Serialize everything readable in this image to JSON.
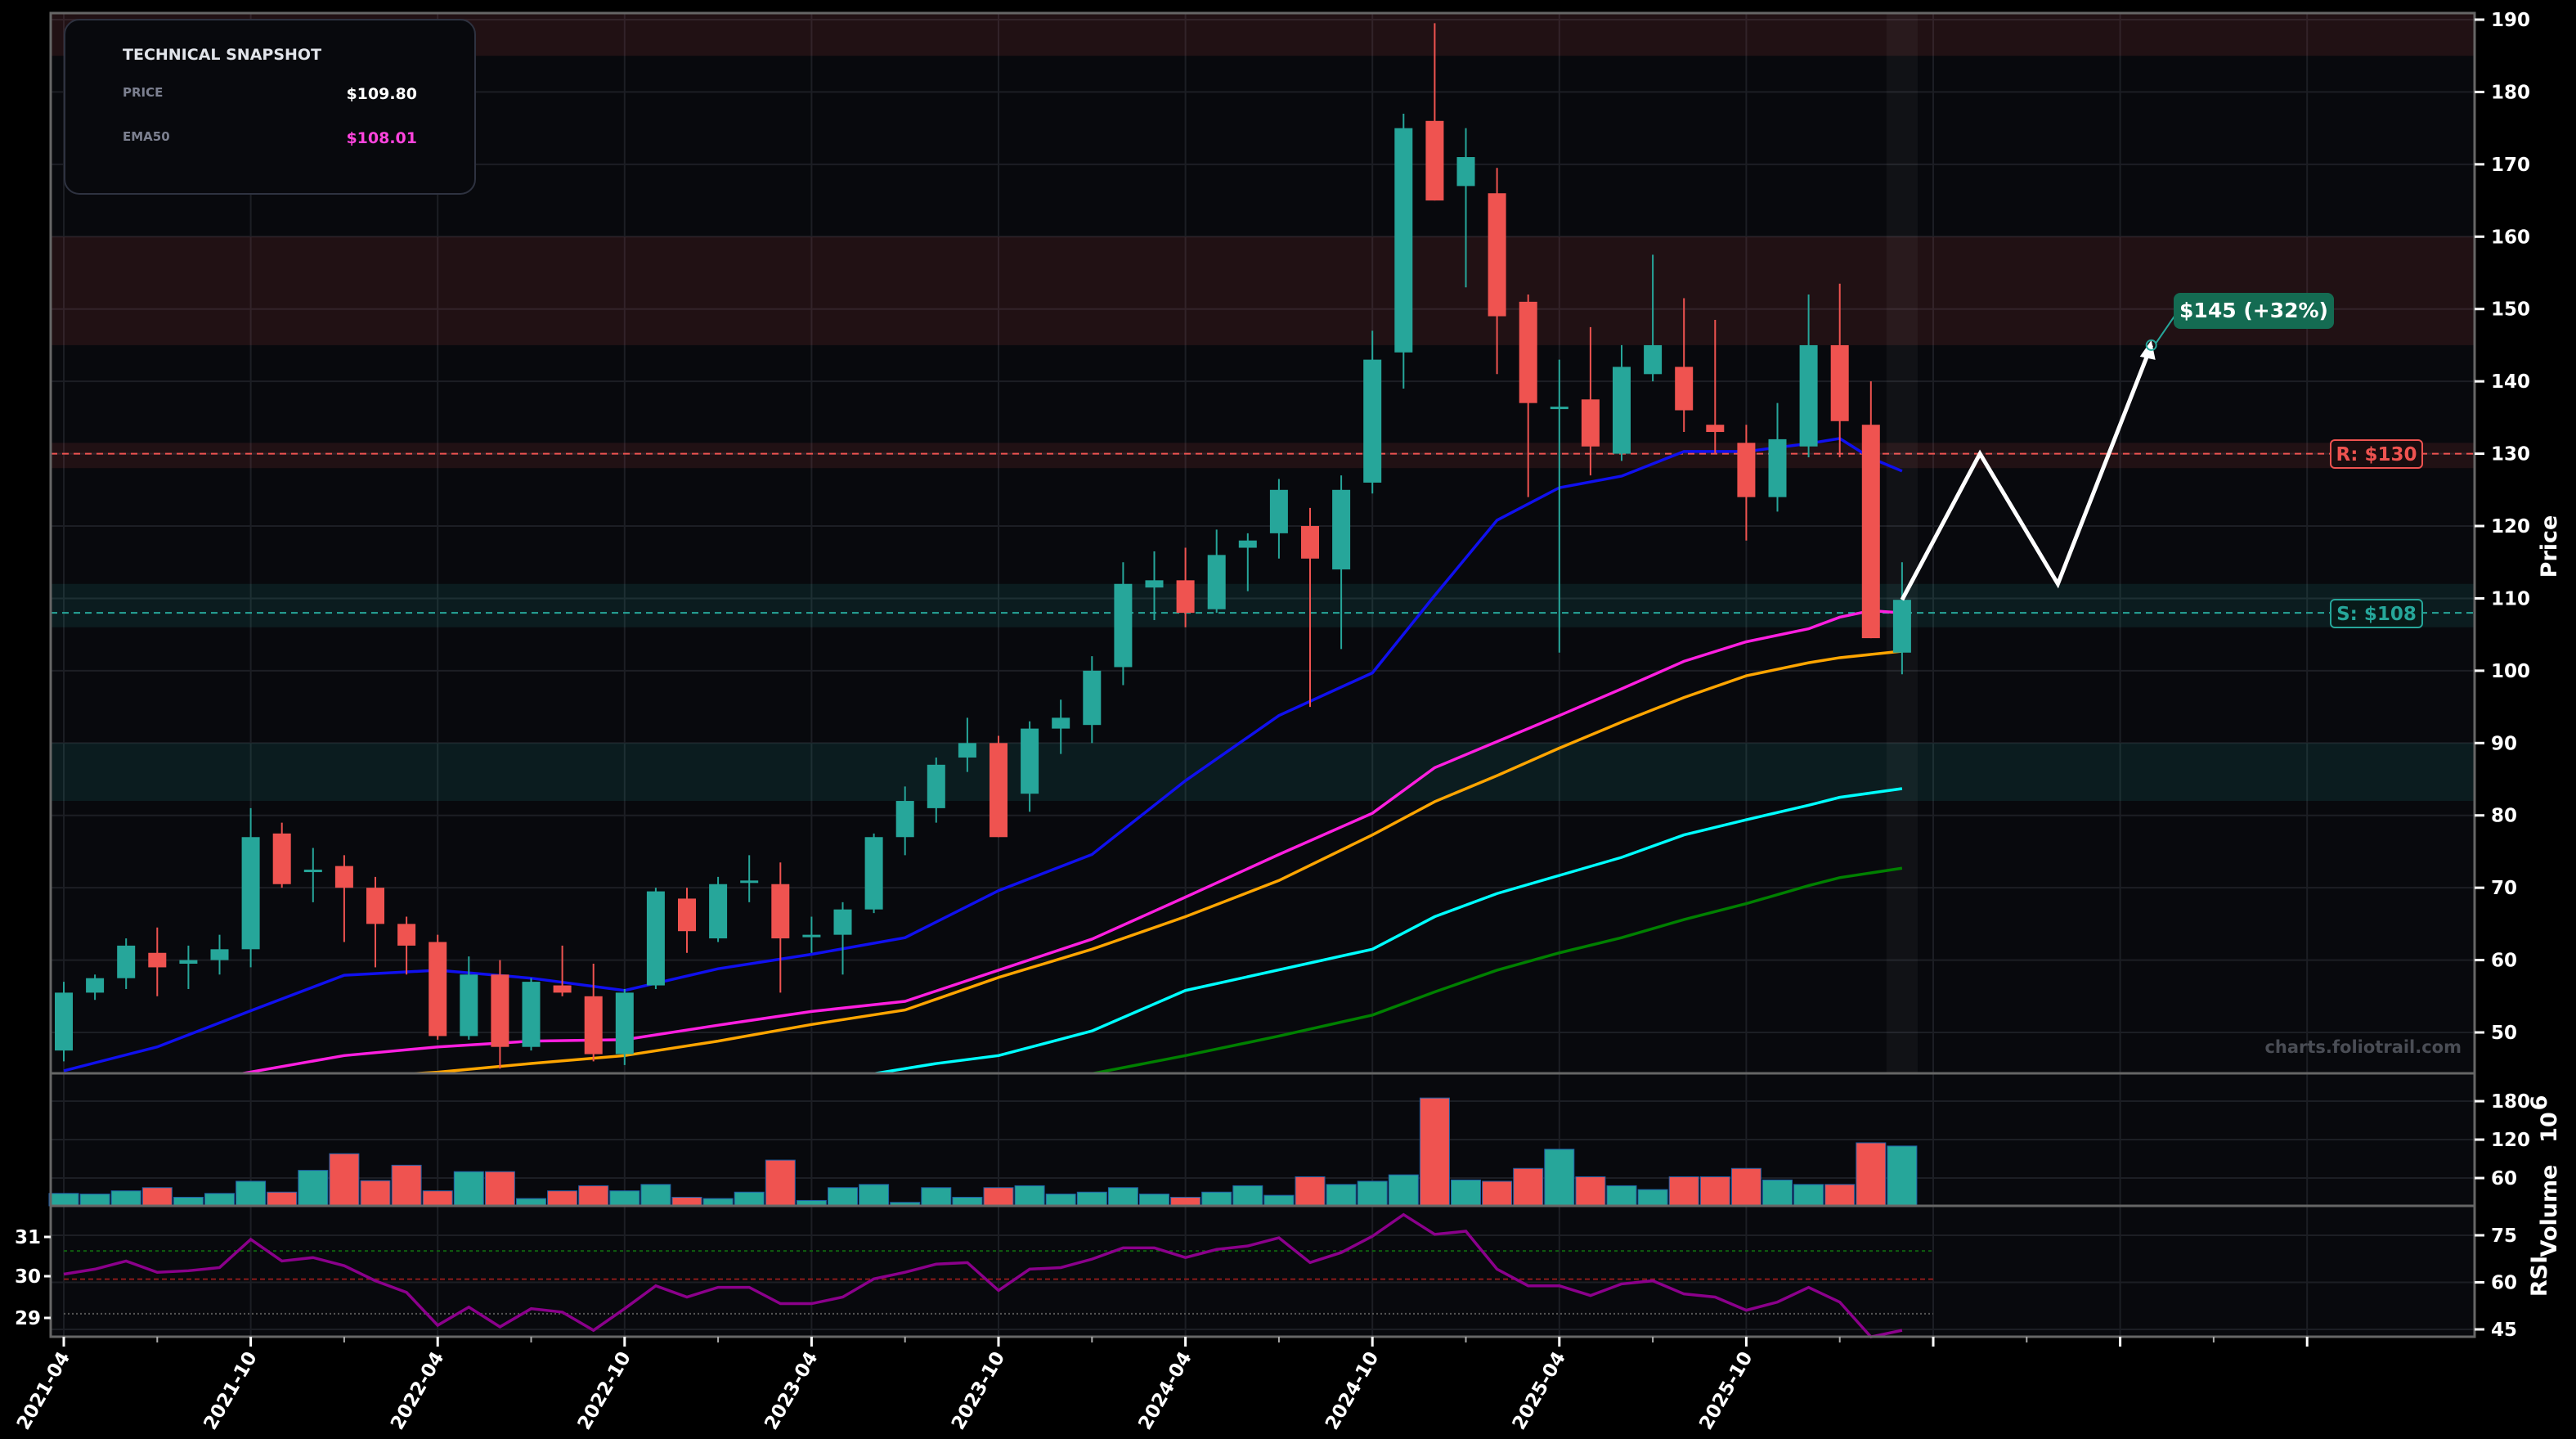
{
  "snapshot": {
    "title": "TECHNICAL SNAPSHOT",
    "price_label": "PRICE",
    "price_value": "$109.80",
    "ema_label": "EMA50",
    "ema_value": "$108.01"
  },
  "labels": {
    "resistance": "R: $130",
    "support": "S: $108",
    "target": "$145 (+32%)",
    "watermark": "charts.foliotrail.com",
    "price_axis": "Price",
    "volume_axis": "Volume",
    "volume_exp": "10",
    "volume_exp_sup": "6",
    "rsi_axis": "RSI"
  },
  "colors": {
    "up": "#26a69a",
    "down": "#ef5350",
    "ema_blue": "#1010ee",
    "ema50": "#ff1fe0",
    "ema_orange": "#ffa500",
    "ema_cyan": "#00ffff",
    "ema_green": "#008000",
    "rsi": "#8b008b",
    "target_bg": "#146b52"
  },
  "chart_data": {
    "type": "candlestick",
    "start_month": "2021-04",
    "x_ticks": [
      "2021-04",
      "2021-10",
      "2022-04",
      "2022-10",
      "2023-04",
      "2023-10",
      "2024-04",
      "2024-10",
      "2025-04",
      "2025-10",
      "",
      "",
      ""
    ],
    "price_ticks": [
      50,
      60,
      70,
      80,
      90,
      100,
      110,
      120,
      130,
      140,
      150,
      160,
      170,
      180,
      190
    ],
    "ylim": [
      44.4,
      191
    ],
    "ohlc": [
      [
        47.5,
        57,
        46,
        55.5
      ],
      [
        55.5,
        58,
        54.5,
        57.5
      ],
      [
        57.5,
        63,
        56,
        62
      ],
      [
        61,
        64.5,
        55,
        59
      ],
      [
        59.5,
        62,
        56,
        60
      ],
      [
        60,
        63.5,
        58,
        61.5
      ],
      [
        61.5,
        81,
        59,
        77
      ],
      [
        77.5,
        79,
        70,
        70.5
      ],
      [
        72.5,
        75.5,
        68,
        72.5
      ],
      [
        73,
        74.5,
        62.5,
        70
      ],
      [
        70,
        71.5,
        59,
        65
      ],
      [
        65,
        66,
        58,
        62
      ],
      [
        62.5,
        63.5,
        49,
        49.5
      ],
      [
        49.5,
        60.5,
        49,
        58
      ],
      [
        58,
        60,
        45,
        48
      ],
      [
        48,
        57.5,
        47.5,
        57
      ],
      [
        56.5,
        62,
        55,
        55.5
      ],
      [
        55,
        59.5,
        46,
        47
      ],
      [
        47,
        56,
        45.5,
        55.5
      ],
      [
        56.5,
        70,
        56,
        69.5
      ],
      [
        68.5,
        70,
        61,
        64
      ],
      [
        63,
        71.5,
        62.5,
        70.5
      ],
      [
        71,
        74.5,
        68,
        71
      ],
      [
        70.5,
        73.5,
        55.5,
        63
      ],
      [
        63.5,
        66,
        61,
        63.5
      ],
      [
        63.5,
        68,
        58,
        67
      ],
      [
        67,
        77.5,
        66.5,
        77
      ],
      [
        77,
        84,
        74.5,
        82
      ],
      [
        81,
        88,
        79,
        87
      ],
      [
        88,
        93.5,
        86,
        90
      ],
      [
        90,
        91,
        77,
        77
      ],
      [
        83,
        93,
        80.5,
        92
      ],
      [
        92,
        96,
        88.5,
        93.5
      ],
      [
        92.5,
        102,
        90,
        100
      ],
      [
        100.5,
        115,
        98,
        112
      ],
      [
        111.5,
        116.5,
        107,
        112.5
      ],
      [
        112.5,
        117,
        106,
        108
      ],
      [
        108.5,
        119.5,
        108,
        116
      ],
      [
        117,
        119,
        111,
        118
      ],
      [
        119,
        126.5,
        115.5,
        125
      ],
      [
        120,
        122.5,
        95,
        115.5
      ],
      [
        114,
        127,
        103,
        125
      ],
      [
        126,
        147,
        124.5,
        143
      ],
      [
        144,
        177,
        139,
        175
      ],
      [
        176,
        189.5,
        165,
        165
      ],
      [
        167,
        175,
        153,
        171
      ],
      [
        166,
        169.5,
        141,
        149
      ],
      [
        151,
        152,
        124,
        137
      ],
      [
        136.5,
        143,
        102.5,
        136.5
      ],
      [
        137.5,
        147.5,
        127,
        131
      ],
      [
        130,
        145,
        129,
        142
      ],
      [
        141,
        157.5,
        140,
        145
      ],
      [
        142,
        151.5,
        133,
        136
      ],
      [
        134,
        148.5,
        130,
        133
      ],
      [
        131.5,
        134,
        118,
        124
      ],
      [
        124,
        137,
        122,
        132
      ],
      [
        131,
        152,
        129.5,
        145
      ],
      [
        145,
        153.5,
        129.5,
        134.5
      ],
      [
        134,
        140,
        104.5,
        104.5
      ],
      [
        102.5,
        115,
        99.5,
        109.8
      ]
    ],
    "moving_averages": [
      {
        "name": "EMA (blue)",
        "color_key": "ema_blue",
        "points": [
          [
            0,
            44.7
          ],
          [
            3,
            48
          ],
          [
            6,
            53
          ],
          [
            9,
            57.9
          ],
          [
            12,
            58.6
          ],
          [
            15,
            57.5
          ],
          [
            18,
            55.8
          ],
          [
            21,
            58.8
          ],
          [
            24,
            60.8
          ],
          [
            27,
            63.1
          ],
          [
            30,
            69.6
          ],
          [
            33,
            74.6
          ],
          [
            36,
            84.8
          ],
          [
            39,
            93.8
          ],
          [
            42,
            99.7
          ],
          [
            44,
            110.4
          ],
          [
            46,
            120.8
          ],
          [
            48,
            125.3
          ],
          [
            50,
            126.9
          ],
          [
            52,
            130.3
          ],
          [
            54,
            130.3
          ],
          [
            56,
            131.4
          ],
          [
            57,
            132.1
          ],
          [
            58,
            129.4
          ],
          [
            59,
            127.6
          ]
        ]
      },
      {
        "name": "EMA50",
        "color_key": "ema50",
        "points": [
          [
            5.7,
            44.3
          ],
          [
            9,
            46.8
          ],
          [
            12,
            48
          ],
          [
            15,
            48.8
          ],
          [
            18,
            49
          ],
          [
            21,
            51
          ],
          [
            24,
            52.9
          ],
          [
            27,
            54.3
          ],
          [
            30,
            58.6
          ],
          [
            33,
            62.9
          ],
          [
            36,
            68.7
          ],
          [
            39,
            74.6
          ],
          [
            42,
            80.3
          ],
          [
            44,
            86.6
          ],
          [
            46,
            90.2
          ],
          [
            48,
            93.8
          ],
          [
            50,
            97.5
          ],
          [
            52,
            101.3
          ],
          [
            54,
            104
          ],
          [
            56,
            105.8
          ],
          [
            57,
            107.4
          ],
          [
            58,
            108.3
          ],
          [
            59,
            108.0
          ]
        ]
      },
      {
        "name": "EMA (orange)",
        "color_key": "ema_orange",
        "points": [
          [
            10,
            44
          ],
          [
            12,
            44.5
          ],
          [
            15,
            45.7
          ],
          [
            18,
            46.8
          ],
          [
            21,
            48.8
          ],
          [
            24,
            51.1
          ],
          [
            27,
            53.1
          ],
          [
            30,
            57.6
          ],
          [
            33,
            61.5
          ],
          [
            36,
            66
          ],
          [
            39,
            71
          ],
          [
            42,
            77.3
          ],
          [
            44,
            81.9
          ],
          [
            46,
            85.5
          ],
          [
            48,
            89.3
          ],
          [
            50,
            92.9
          ],
          [
            52,
            96.3
          ],
          [
            54,
            99.3
          ],
          [
            56,
            101.1
          ],
          [
            57,
            101.8
          ],
          [
            59,
            102.7
          ]
        ]
      },
      {
        "name": "EMA (cyan)",
        "color_key": "ema_cyan",
        "points": [
          [
            26,
            44.3
          ],
          [
            28,
            45.7
          ],
          [
            30,
            46.8
          ],
          [
            33,
            50.2
          ],
          [
            36,
            55.8
          ],
          [
            42,
            61.5
          ],
          [
            44,
            66
          ],
          [
            46,
            69.2
          ],
          [
            48,
            71.7
          ],
          [
            50,
            74.2
          ],
          [
            52,
            77.3
          ],
          [
            54,
            79.4
          ],
          [
            56,
            81.4
          ],
          [
            57,
            82.5
          ],
          [
            59,
            83.7
          ]
        ]
      },
      {
        "name": "EMA (green)",
        "color_key": "ema_green",
        "points": [
          [
            33,
            44.3
          ],
          [
            36,
            46.8
          ],
          [
            39,
            49.5
          ],
          [
            42,
            52.4
          ],
          [
            44,
            55.6
          ],
          [
            46,
            58.6
          ],
          [
            48,
            61
          ],
          [
            50,
            63.1
          ],
          [
            52,
            65.6
          ],
          [
            54,
            67.8
          ],
          [
            56,
            70.3
          ],
          [
            57,
            71.4
          ],
          [
            59,
            72.7
          ]
        ]
      }
    ],
    "zones": [
      {
        "type": "resistance",
        "from": 185,
        "to": 191
      },
      {
        "type": "resistance",
        "from": 145,
        "to": 160
      },
      {
        "type": "resistance",
        "from": 128,
        "to": 131.5
      },
      {
        "type": "support",
        "from": 106,
        "to": 112
      },
      {
        "type": "support",
        "from": 82,
        "to": 90
      }
    ],
    "resistance_level": 130,
    "support_level": 108,
    "projection": [
      [
        59,
        109.8
      ],
      [
        61.5,
        130
      ],
      [
        64,
        112
      ],
      [
        67,
        145
      ]
    ],
    "volume": {
      "unit": "millions",
      "ticks": [
        60,
        120,
        180
      ],
      "values": [
        36,
        35,
        40,
        45,
        30,
        36,
        55,
        38,
        72,
        98,
        56,
        80,
        40,
        70,
        70,
        28,
        40,
        48,
        40,
        50,
        30,
        28,
        38,
        88,
        25,
        45,
        50,
        22,
        45,
        30,
        45,
        48,
        35,
        38,
        45,
        35,
        30,
        38,
        48,
        33,
        62,
        50,
        55,
        65,
        185,
        57,
        55,
        75,
        105,
        62,
        48,
        42,
        62,
        62,
        75,
        57,
        50,
        50,
        115,
        110
      ]
    },
    "rsi": {
      "ticks_right": [
        45,
        60,
        75
      ],
      "ticks_left": [
        "31",
        "30",
        "29"
      ],
      "ylim": [
        40.8,
        82.9
      ],
      "levels": [
        70,
        61,
        50
      ],
      "values": [
        62.6,
        64.2,
        66.8,
        63.2,
        63.7,
        64.7,
        73.7,
        66.8,
        67.9,
        65.3,
        60.5,
        56.8,
        46.3,
        52.1,
        45.8,
        51.6,
        50.5,
        44.7,
        51.6,
        58.9,
        55.3,
        58.4,
        58.4,
        53.2,
        53.2,
        55.3,
        61.1,
        63.2,
        65.8,
        66.3,
        57.4,
        64.2,
        64.7,
        67.4,
        71.0,
        71.0,
        67.9,
        70.5,
        71.6,
        74.2,
        66.3,
        69.5,
        74.7,
        81.6,
        75.3,
        76.3,
        64.2,
        58.9,
        58.9,
        55.8,
        59.5,
        60.5,
        56.3,
        55.3,
        51.1,
        53.7,
        58.4,
        53.7,
        42.6,
        44.7
      ]
    }
  }
}
